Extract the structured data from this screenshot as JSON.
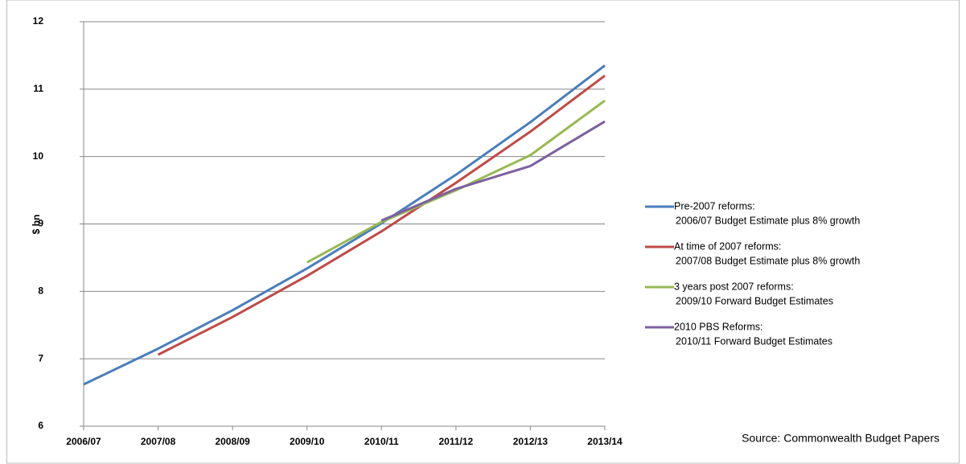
{
  "chart_data": {
    "type": "line",
    "y_label": "$ bn",
    "categories": [
      "2006/07",
      "2007/08",
      "2008/09",
      "2009/10",
      "2010/11",
      "2011/12",
      "2012/13",
      "2013/14"
    ],
    "series": [
      {
        "name": [
          "Pre-2007 reforms:",
          "2006/07 Budget Estimate  plus 8% growth"
        ],
        "color": "#4a7ebb",
        "values": [
          6.62,
          7.15,
          7.72,
          8.34,
          9.01,
          9.73,
          10.51,
          11.35
        ]
      },
      {
        "name": [
          "At time of 2007 reforms:",
          "2007/08 Budget Estimate  plus 8% growth"
        ],
        "color": "#be4b48",
        "values": [
          null,
          7.06,
          7.62,
          8.23,
          8.89,
          9.61,
          10.37,
          11.2
        ]
      },
      {
        "name": [
          "3 years post 2007 reforms:",
          "2009/10 Forward Budget Estimates"
        ],
        "color": "#98b954",
        "values": [
          null,
          null,
          null,
          8.43,
          9.03,
          9.5,
          10.02,
          10.83
        ]
      },
      {
        "name": [
          "2010 PBS Reforms:",
          "2010/11 Forward Budget Estimates"
        ],
        "color": "#7d60a0",
        "values": [
          null,
          null,
          null,
          null,
          9.05,
          9.52,
          9.86,
          10.52
        ]
      }
    ],
    "ylim": [
      6,
      12
    ],
    "yticks": [
      6,
      7,
      8,
      9,
      10,
      11,
      12
    ],
    "grid": true,
    "annotation": "Source: Commonwealth Budget Papers"
  }
}
